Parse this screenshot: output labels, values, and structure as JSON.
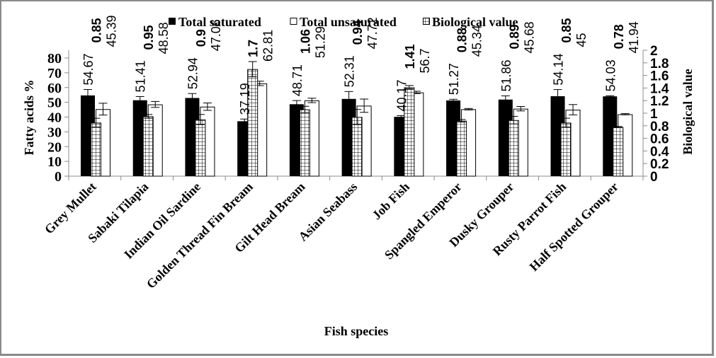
{
  "chart_data": {
    "type": "bar",
    "title": "",
    "xlabel": "Fish species",
    "ylabel": "Fatty acids %",
    "y2label": "Biological value",
    "ylim": [
      0,
      85
    ],
    "y2lim": [
      0,
      2
    ],
    "yticks": [
      "0",
      "10",
      "20",
      "30",
      "40",
      "50",
      "60",
      "70",
      "80"
    ],
    "y2ticks": [
      "0",
      "0.2",
      "0.4",
      "0.6",
      "0.8",
      "1",
      "1.2",
      "1.4",
      "1.6",
      "1.8",
      "2"
    ],
    "grid": false,
    "legend_position": "top",
    "categories": [
      "Grey Mullet",
      "Sabaki Tilapia",
      "Indian Oil Sardine",
      "Golden Thread Fin Bream",
      "Gilt Head Bream",
      "Asian Seabass",
      "Job Fish",
      "Spangled Emperor",
      "Dusky Grouper",
      "Rusty  Parrot  Fish",
      "Half Spotted Grouper"
    ],
    "series": [
      {
        "name": "Total saturated",
        "axis": "left",
        "fill": "#000000",
        "values": [
          54.67,
          51.41,
          52.94,
          37.19,
          48.71,
          52.31,
          40.17,
          51.27,
          51.86,
          54.14,
          54.03
        ],
        "labels": [
          "54.67",
          "51.41",
          "52.94",
          "37.19",
          "48.71",
          "52.31",
          "40.17",
          "51.27",
          "51.86",
          "54.14",
          "54.03"
        ],
        "errors": [
          4,
          2.5,
          3,
          1.5,
          2.5,
          5,
          0.8,
          0.8,
          2.5,
          4.5,
          0.4
        ]
      },
      {
        "name": "Total unsaturated",
        "axis": "left",
        "fill": "#ffffff",
        "values": [
          45.39,
          48.58,
          47.06,
          62.81,
          51.29,
          47.72,
          56.7,
          45.34,
          45.68,
          45,
          41.94
        ],
        "labels": [
          "45.39",
          "48.58",
          "47.06",
          "62.81",
          "51.29",
          "47.72",
          "56.7",
          "45.34",
          "45.68",
          "45",
          "41.94"
        ],
        "errors": [
          4,
          2,
          2.5,
          1.5,
          1.5,
          4.5,
          0.8,
          0.5,
          1.5,
          3.5,
          0.4
        ]
      },
      {
        "name": "Biological value",
        "axis": "right",
        "fill": "grid-hatch",
        "values": [
          0.85,
          0.95,
          0.9,
          1.7,
          1.06,
          0.94,
          1.41,
          0.88,
          0.89,
          0.85,
          0.78
        ],
        "labels": [
          "0.85",
          "0.95",
          "0.9",
          "1.7",
          "1.06",
          "0.94",
          "1.41",
          "0.88",
          "0.89",
          "0.85",
          "0.78"
        ],
        "errors": [
          0.07,
          0.03,
          0.08,
          0.12,
          0.05,
          0.12,
          0.03,
          0.02,
          0.06,
          0.07,
          0.01
        ]
      }
    ]
  }
}
